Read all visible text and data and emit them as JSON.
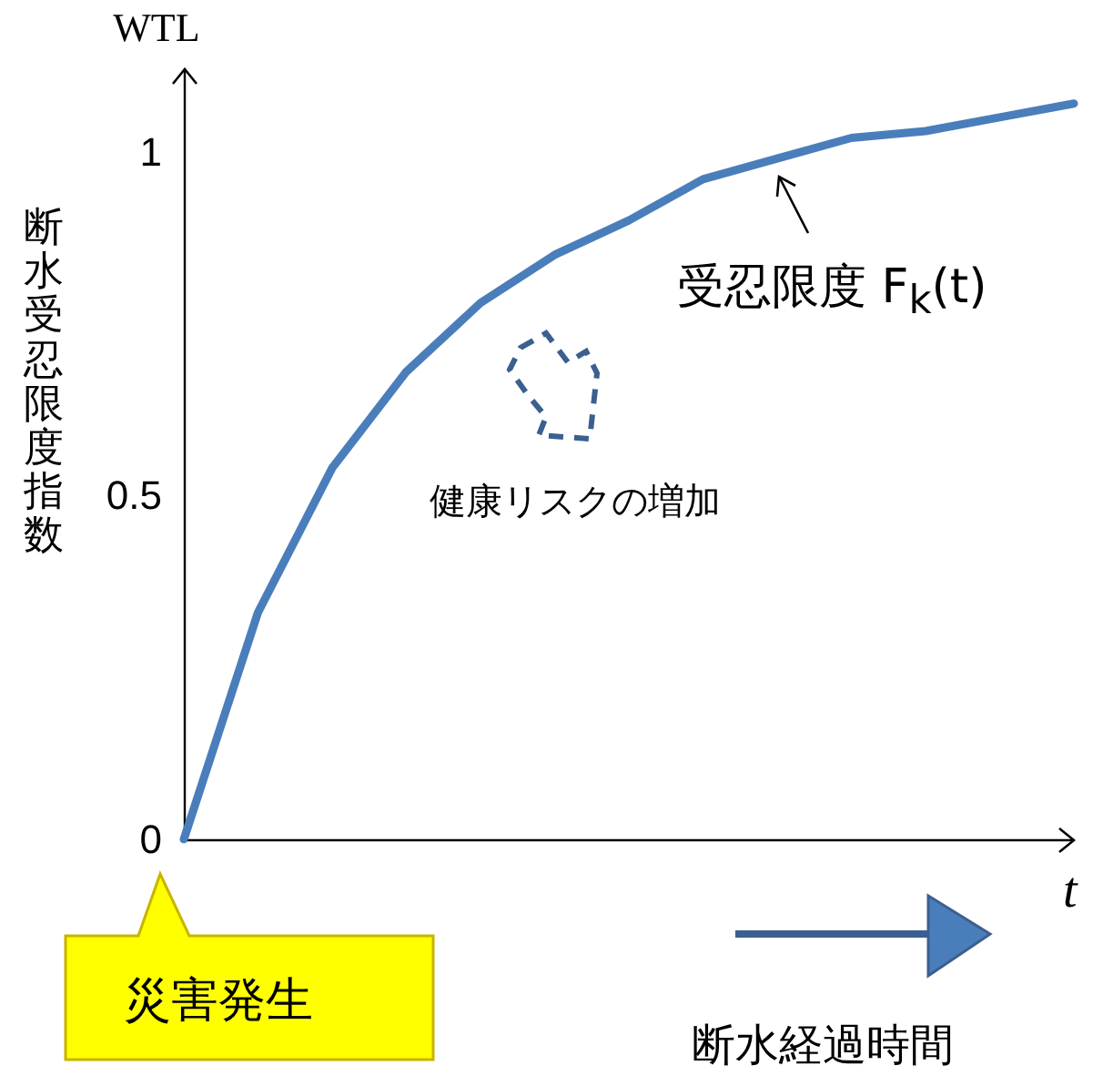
{
  "chart_data": {
    "type": "line",
    "ylabel": "WTL",
    "xlabel": "t",
    "annotations": [
      "受忍限度 F$_{k}$(t)",
      "健康リスクの増加",
      "災害発生",
      "断水経過時間",
      "断水受忍限度指数"
    ],
    "categories": [
      null,
      null,
      null,
      null,
      null,
      null,
      null,
      null,
      null,
      null,
      null,
      null,
      null
    ],
    "series": [
      {
        "color": "#4a7ebb",
        "values": [
          0,
          0.33,
          0.54,
          0.68,
          0.78,
          0.85,
          0.9,
          0.96,
          0.99,
          1.02,
          1.03,
          1.05,
          1.07
        ]
      }
    ],
    "ylim": [
      0,
      1.12
    ],
    "yticks": [
      0,
      0.5,
      1
    ],
    "tick_labels": "y",
    "marker": "none",
    "line_style": "solid"
  }
}
